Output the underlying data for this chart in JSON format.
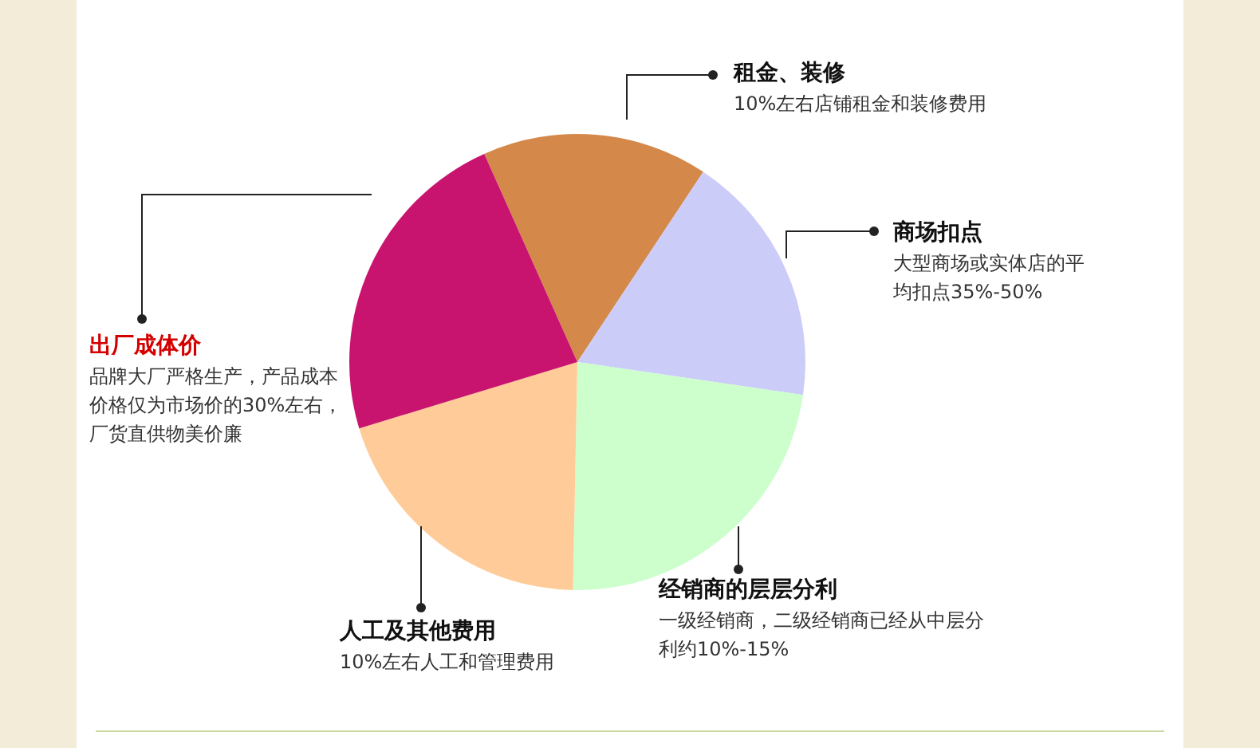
{
  "chart_data": {
    "type": "pie",
    "categories": [
      "租金、装修",
      "商场扣点",
      "经销商的层层分利",
      "人工及其他费用",
      "出厂成体价"
    ],
    "values": [
      16,
      18,
      23,
      20,
      23
    ],
    "colors": [
      "#d4884a",
      "#ccccf8",
      "#ccffcc",
      "#ffcc99",
      "#c8146e"
    ],
    "annotations": [
      "10%左右店铺租金和装修费用",
      "大型商场或实体店的平均扣点35%-50%",
      "一级经销商，二级经销商已经从中层分利约10%-15%",
      "10%左右人工和管理费用",
      "品牌大厂严格生产，产品成本价格仅为市场价的30%左右，厂货直供物美价廉"
    ]
  }
}
